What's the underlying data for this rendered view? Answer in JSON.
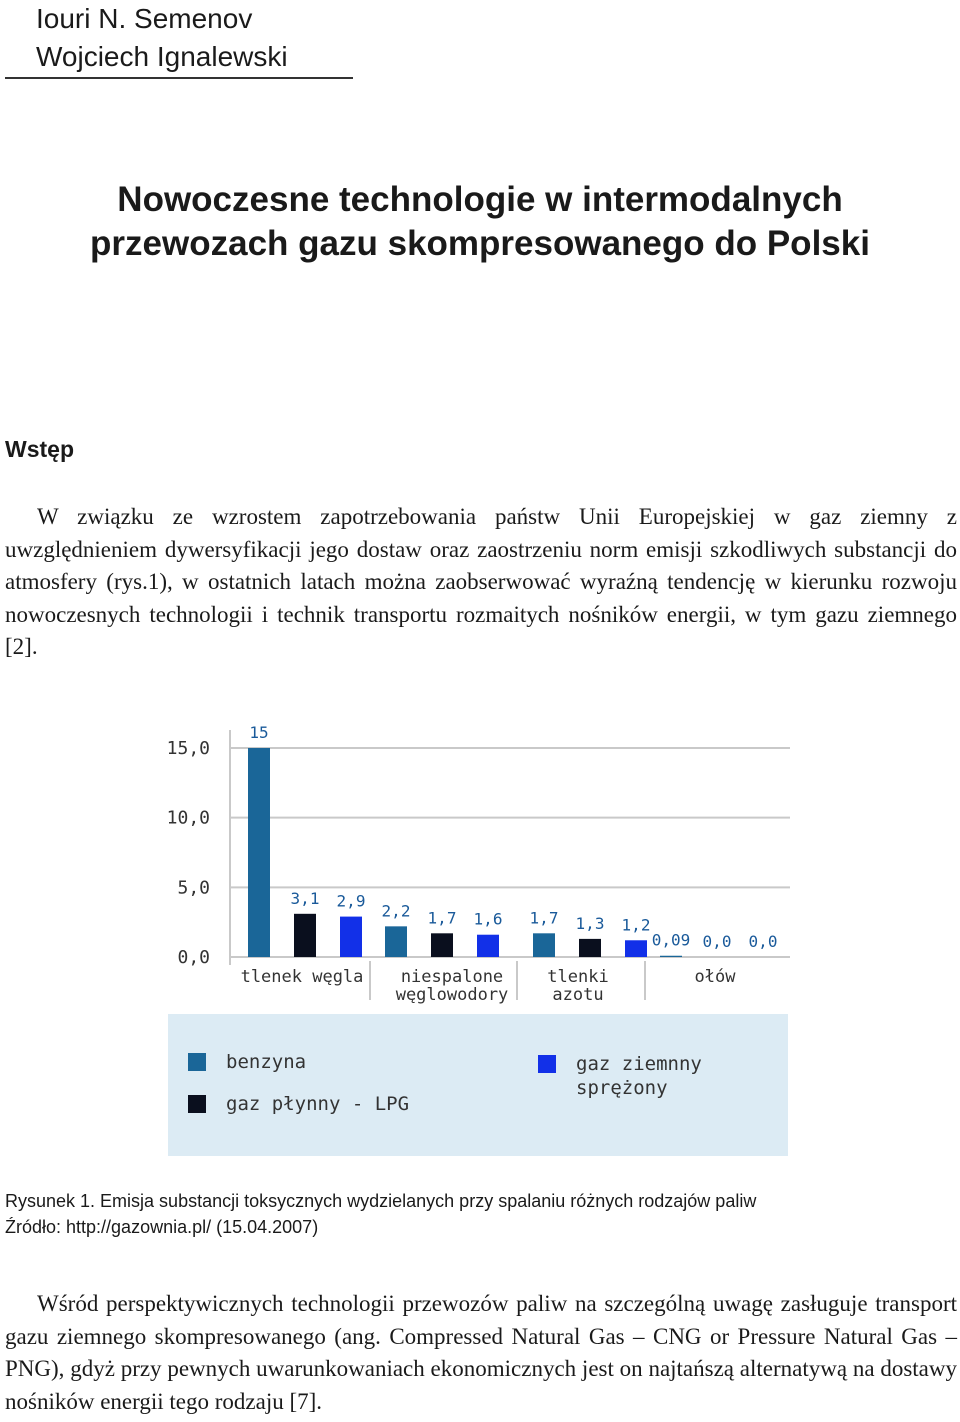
{
  "authors": [
    "Iouri N. Semenov",
    "Wojciech Ignalewski"
  ],
  "title": [
    "Nowoczesne technologie w intermodalnych",
    "przewozach gazu skompresowanego do Polski"
  ],
  "section_heading": "Wstęp",
  "paragraph1": "W związku ze wzrostem zapotrzebowania państw Unii Europejskiej w gaz ziemny z uwzględnieniem dywersyfikacji jego dostaw oraz zaostrzeniu norm emisji szkodliwych substancji do atmosfery (rys.1), w ostatnich latach można zaobserwować wyraźną tendencję w kierunku rozwoju nowoczesnych technologii i technik transportu rozmaitych nośników energii, w tym gazu ziemnego [2].",
  "caption": {
    "figure": "Rysunek 1. Emisja substancji toksycznych wydzielanych przy spalaniu różnych rodzajów paliw",
    "source": "Źródło: http://gazownia.pl/ (15.04.2007)"
  },
  "paragraph2": "Wśród perspektywicznych technologii przewozów paliw na szczególną uwagę zasługuje transport gazu ziemnego skompresowanego (ang. Compressed Natural Gas – CNG or Pressure Natural Gas – PNG), gdyż przy pewnych uwarunkowaniach ekonomicznych jest on najtańszą alternatywą na dostawy nośników energii tego rodzaju [7].",
  "colors": {
    "benzyna": "#1a6698",
    "lpg": "#0a0f1e",
    "cng": "#1230e8",
    "legend_bg": "#dcebf4",
    "grid": "#c9c9c9"
  },
  "chart_data": {
    "type": "bar",
    "categories": [
      "tlenek węgla",
      "niespalone węglowodory",
      "tlenki azotu",
      "ołów"
    ],
    "category_labels": [
      [
        "tlenek węgla"
      ],
      [
        "niespalone",
        "węglowodory"
      ],
      [
        "tlenki",
        "azotu"
      ],
      [
        "ołów"
      ]
    ],
    "series": [
      {
        "name": "benzyna",
        "values": [
          15,
          2.2,
          1.7,
          0.09
        ],
        "labels": [
          "15",
          "2,2",
          "1,7",
          "0,09"
        ]
      },
      {
        "name": "gaz płynny - LPG",
        "values": [
          3.1,
          1.7,
          1.3,
          0.0
        ],
        "labels": [
          "3,1",
          "1,7",
          "1,3",
          "0,0"
        ]
      },
      {
        "name": "gaz ziemnny sprężony",
        "values": [
          2.9,
          1.6,
          1.2,
          0.0
        ],
        "labels": [
          "2,9",
          "1,6",
          "1,2",
          "0,0"
        ]
      }
    ],
    "yticks": [
      0,
      5,
      10,
      15
    ],
    "ytick_labels": [
      "0,0",
      "5,0",
      "10,0",
      "15,0"
    ],
    "ylim": [
      0,
      15
    ],
    "grid": true,
    "legend": [
      {
        "label": [
          "benzyna"
        ],
        "series": 0
      },
      {
        "label": [
          "gaz płynny - LPG"
        ],
        "series": 1
      },
      {
        "label": [
          "gaz ziemnny",
          "sprężony"
        ],
        "series": 2
      }
    ],
    "legend_position": "bottom",
    "title": "",
    "xlabel": "",
    "ylabel": ""
  }
}
